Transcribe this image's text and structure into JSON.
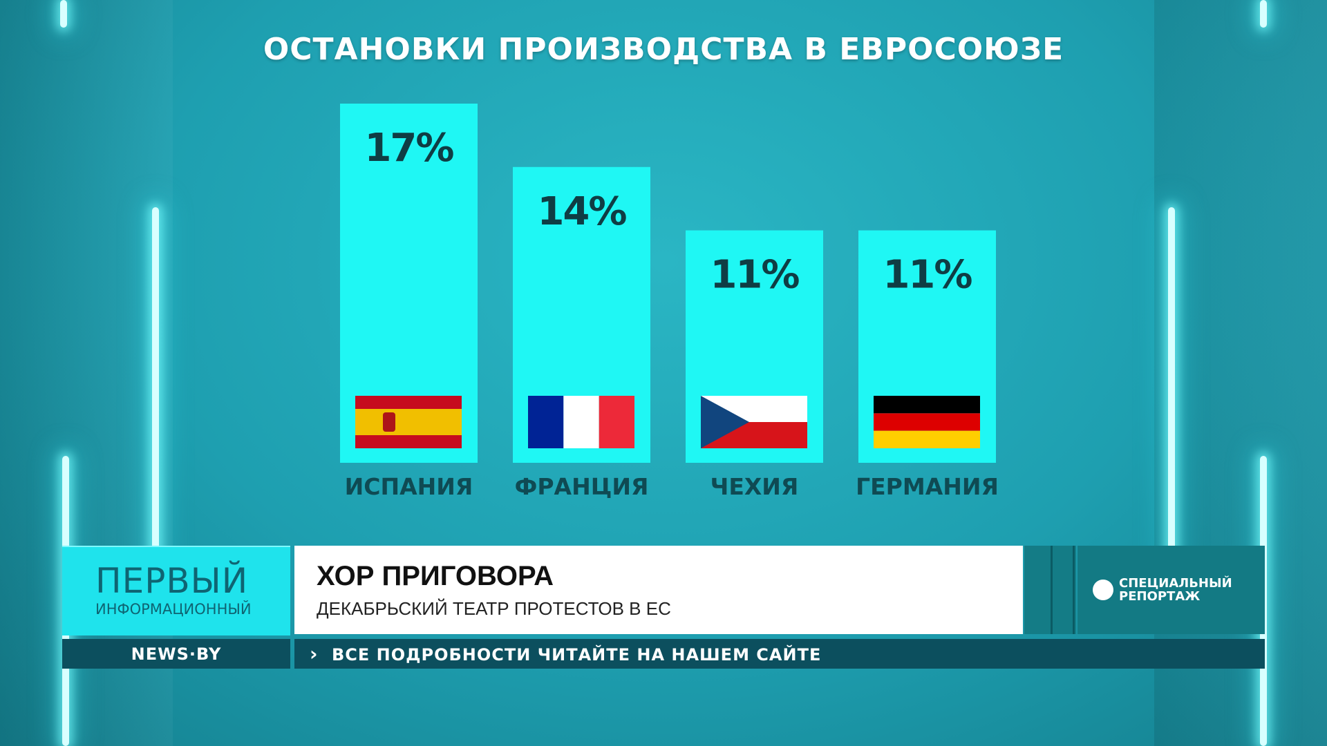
{
  "chart_data": {
    "type": "bar",
    "title": "ОСТАНОВКИ ПРОИЗВОДСТВА В ЕВРОСОЮЗЕ",
    "categories": [
      "ИСПАНИЯ",
      "ФРАНЦИЯ",
      "ЧЕХИЯ",
      "ГЕРМАНИЯ"
    ],
    "values": [
      17,
      14,
      11,
      11
    ],
    "value_labels": [
      "17%",
      "14%",
      "11%",
      "11%"
    ],
    "flags": [
      "flag-spain-icon",
      "flag-france-icon",
      "flag-czechia-icon",
      "flag-germany-icon"
    ],
    "bar_color": "#1ff7f4",
    "grid": false
  },
  "lower_third": {
    "logo_main": "ПЕРВЫЙ",
    "logo_sub": "ИНФОРМАЦИОННЫЙ",
    "headline": "ХОР ПРИГОВОРА",
    "subheadline": "ДЕКАБРЬСКИЙ ТЕАТР ПРОТЕСТОВ В ЕС",
    "special_label_line1": "СПЕЦИАЛЬНЫЙ",
    "special_label_line2": "РЕПОРТАЖ"
  },
  "ticker": {
    "site": "NEWS·BY",
    "arrow": "›",
    "text": "ВСЕ ПОДРОБНОСТИ ЧИТАЙТЕ НА НАШЕМ САЙТЕ"
  },
  "colors": {
    "logo_bg": "#1fe3ec",
    "ticker_bg": "#0c4f5e",
    "special_bg": "#137a84"
  }
}
